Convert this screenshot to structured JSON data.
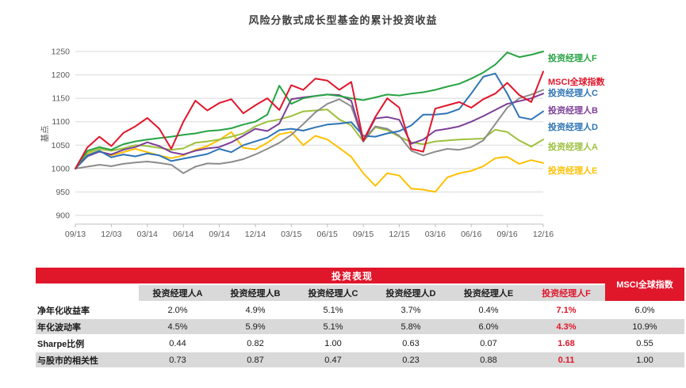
{
  "page": {
    "title": "风险分散式成长型基金的累计投资收益"
  },
  "colors": {
    "accent_red": "#E0162B",
    "row_gray": "#D9D9D9",
    "grid_gray": "#D9D9D9",
    "axis_line": "#BFBFBF",
    "axis_text": "#595959"
  },
  "chart_data": {
    "type": "line",
    "title": "风险分散式成长型基金的累计投资收益",
    "xlabel": "",
    "ylabel": "基点",
    "ylim": [
      900,
      1250
    ],
    "y_ticks": [
      1250,
      1200,
      1150,
      1100,
      1050,
      1000,
      950,
      900
    ],
    "x_tick_labels": [
      "09/13",
      "12/03",
      "03/14",
      "06/14",
      "09/14",
      "12/14",
      "03/15",
      "06/15",
      "09/15",
      "12/15",
      "03/16",
      "06/16",
      "09/16",
      "12/16"
    ],
    "points_per_series": 40,
    "months_per_tick": 3,
    "grid": "horizontal-only",
    "legend_position": "right",
    "series": [
      {
        "name": "投资经理人F",
        "line_color": "#27A343",
        "label_color": "#27A343",
        "values": [
          1000,
          1038,
          1046,
          1040,
          1052,
          1058,
          1062,
          1065,
          1068,
          1072,
          1075,
          1080,
          1082,
          1086,
          1094,
          1100,
          1115,
          1177,
          1138,
          1150,
          1155,
          1158,
          1155,
          1150,
          1146,
          1152,
          1158,
          1156,
          1160,
          1163,
          1168,
          1175,
          1181,
          1192,
          1205,
          1222,
          1248,
          1238,
          1243,
          1250
        ]
      },
      {
        "name": "MSCI全球指数",
        "line_color": "#E0162B",
        "label_color": "#E0162B",
        "values": [
          1000,
          1045,
          1068,
          1048,
          1076,
          1090,
          1108,
          1085,
          1042,
          1100,
          1145,
          1124,
          1140,
          1148,
          1118,
          1135,
          1150,
          1125,
          1178,
          1168,
          1192,
          1188,
          1168,
          1185,
          1060,
          1110,
          1150,
          1130,
          1042,
          1036,
          1128,
          1135,
          1142,
          1130,
          1148,
          1160,
          1183,
          1157,
          1142,
          1207
        ]
      },
      {
        "name": "投资经理人C",
        "line_color": "#8C8C8C",
        "label_color": "#2E74B5",
        "values": [
          1000,
          1004,
          1008,
          1005,
          1010,
          1013,
          1015,
          1012,
          1008,
          990,
          1004,
          1011,
          1010,
          1014,
          1020,
          1030,
          1042,
          1055,
          1072,
          1095,
          1120,
          1138,
          1148,
          1133,
          1060,
          1090,
          1085,
          1070,
          1038,
          1028,
          1036,
          1042,
          1040,
          1046,
          1060,
          1095,
          1130,
          1150,
          1158,
          1168
        ]
      },
      {
        "name": "投资经理人B",
        "line_color": "#7D3F98",
        "label_color": "#7D3F98",
        "values": [
          1000,
          1026,
          1036,
          1030,
          1040,
          1046,
          1056,
          1048,
          1035,
          1030,
          1038,
          1043,
          1046,
          1056,
          1070,
          1085,
          1080,
          1096,
          1148,
          1152,
          1155,
          1158,
          1157,
          1145,
          1058,
          1107,
          1110,
          1104,
          1053,
          1062,
          1081,
          1085,
          1090,
          1100,
          1112,
          1125,
          1138,
          1144,
          1150,
          1160
        ]
      },
      {
        "name": "投资经理人D",
        "line_color": "#2E74B5",
        "label_color": "#2E74B5",
        "values": [
          1000,
          1028,
          1038,
          1024,
          1030,
          1026,
          1032,
          1028,
          1016,
          1021,
          1026,
          1031,
          1042,
          1035,
          1050,
          1058,
          1066,
          1082,
          1085,
          1081,
          1088,
          1094,
          1096,
          1099,
          1070,
          1068,
          1075,
          1080,
          1092,
          1115,
          1115,
          1118,
          1127,
          1160,
          1196,
          1203,
          1160,
          1110,
          1105,
          1122
        ]
      },
      {
        "name": "投资经理人A",
        "line_color": "#9CC13C",
        "label_color": "#9CC13C",
        "values": [
          1000,
          1034,
          1042,
          1038,
          1043,
          1050,
          1048,
          1044,
          1040,
          1043,
          1055,
          1058,
          1062,
          1068,
          1075,
          1090,
          1100,
          1105,
          1112,
          1122,
          1124,
          1126,
          1105,
          1092,
          1058,
          1088,
          1082,
          1068,
          1056,
          1052,
          1058,
          1060,
          1062,
          1063,
          1064,
          1083,
          1078,
          1060,
          1047,
          1062
        ]
      },
      {
        "name": "投资经理人E",
        "line_color": "#FFC000",
        "label_color": "#FFC000",
        "values": [
          1000,
          1030,
          1038,
          1028,
          1035,
          1042,
          1035,
          1028,
          1022,
          1028,
          1040,
          1048,
          1061,
          1078,
          1044,
          1041,
          1055,
          1073,
          1078,
          1050,
          1070,
          1062,
          1044,
          1025,
          990,
          963,
          990,
          985,
          957,
          955,
          950,
          981,
          990,
          995,
          1005,
          1022,
          1025,
          1010,
          1018,
          1012
        ]
      }
    ]
  },
  "table": {
    "banner": "投资表现",
    "msci_header": "MSCI全球指数",
    "manager_headers": [
      "投资经理人A",
      "投资经理人B",
      "投资经理人C",
      "投资经理人D",
      "投资经理人E",
      "投资经理人F"
    ],
    "highlighted_manager": "投资经理人F",
    "rows": [
      {
        "label": "净年化收益率",
        "values": [
          "2.0%",
          "4.9%",
          "5.1%",
          "3.7%",
          "0.4%",
          "7.1%",
          "6.0%"
        ]
      },
      {
        "label": "年化波动率",
        "values": [
          "4.5%",
          "5.9%",
          "5.1%",
          "5.8%",
          "6.0%",
          "4.3%",
          "10.9%"
        ]
      },
      {
        "label": "Sharpe比例",
        "values": [
          "0.44",
          "0.82",
          "1.00",
          "0.63",
          "0.07",
          "1.68",
          "0.55"
        ]
      },
      {
        "label": "与股市的相关性",
        "values": [
          "0.73",
          "0.87",
          "0.47",
          "0.23",
          "0.88",
          "0.11",
          "1.00"
        ]
      }
    ]
  }
}
